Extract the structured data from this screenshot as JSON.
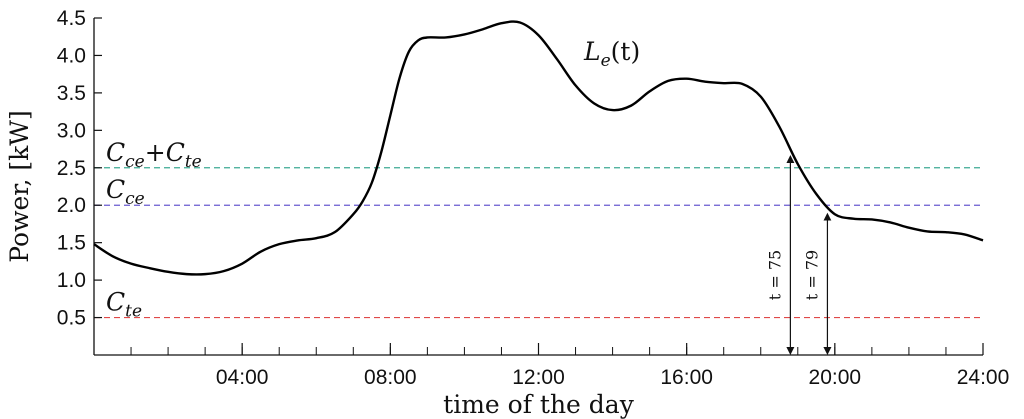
{
  "chart_data": {
    "type": "line",
    "xlabel": "time of the day",
    "ylabel": "Power, [kW]",
    "x_unit": "hour of day",
    "xlim": [
      0,
      24
    ],
    "ylim": [
      0,
      4.5
    ],
    "x_ticks": [
      {
        "value": 4,
        "label": "04:00"
      },
      {
        "value": 8,
        "label": "08:00"
      },
      {
        "value": 12,
        "label": "12:00"
      },
      {
        "value": 16,
        "label": "16:00"
      },
      {
        "value": 20,
        "label": "20:00"
      },
      {
        "value": 24,
        "label": "24:00"
      }
    ],
    "y_ticks": [
      {
        "value": 0.5,
        "label": "0.5"
      },
      {
        "value": 1.0,
        "label": "1.0"
      },
      {
        "value": 1.5,
        "label": "1.5"
      },
      {
        "value": 2.0,
        "label": "2.0"
      },
      {
        "value": 2.5,
        "label": "2.5"
      },
      {
        "value": 3.0,
        "label": "3.0"
      },
      {
        "value": 3.5,
        "label": "3.5"
      },
      {
        "value": 4.0,
        "label": "4.0"
      },
      {
        "value": 4.5,
        "label": "4.5"
      }
    ],
    "minor_x_step": 1,
    "grid": false,
    "series": [
      {
        "label": {
          "base": "L",
          "sub": "e",
          "suffix": "(t)"
        },
        "color": "#000000",
        "x": [
          0,
          0.5,
          1,
          1.5,
          2,
          2.5,
          3,
          3.5,
          4,
          4.5,
          5,
          5.5,
          6,
          6.5,
          7,
          7.25,
          7.5,
          7.75,
          8,
          8.25,
          8.5,
          8.75,
          9,
          9.5,
          10,
          10.5,
          11,
          11.5,
          12,
          12.5,
          13,
          13.5,
          14,
          14.5,
          15,
          15.5,
          16,
          16.5,
          17,
          17.5,
          18,
          18.5,
          19,
          19.5,
          20,
          20.5,
          21,
          21.5,
          22,
          22.5,
          23,
          23.5,
          24
        ],
        "y": [
          1.48,
          1.32,
          1.22,
          1.16,
          1.11,
          1.08,
          1.08,
          1.12,
          1.22,
          1.38,
          1.48,
          1.53,
          1.56,
          1.64,
          1.88,
          2.05,
          2.3,
          2.7,
          3.2,
          3.7,
          4.05,
          4.2,
          4.24,
          4.24,
          4.28,
          4.35,
          4.43,
          4.44,
          4.27,
          3.95,
          3.6,
          3.36,
          3.27,
          3.33,
          3.52,
          3.66,
          3.69,
          3.65,
          3.63,
          3.62,
          3.45,
          3.05,
          2.55,
          2.15,
          1.88,
          1.82,
          1.81,
          1.77,
          1.7,
          1.65,
          1.64,
          1.61,
          1.53
        ]
      }
    ],
    "thresholds": [
      {
        "value": 2.5,
        "color": "#3daa94",
        "label": {
          "parts": [
            {
              "base": "C",
              "sub": "ce"
            },
            {
              "op": "+"
            },
            {
              "base": "C",
              "sub": "te"
            }
          ]
        }
      },
      {
        "value": 2.0,
        "color": "#6a5bd0",
        "label": {
          "parts": [
            {
              "base": "C",
              "sub": "ce"
            }
          ]
        }
      },
      {
        "value": 0.5,
        "color": "#e04848",
        "label": {
          "parts": [
            {
              "base": "C",
              "sub": "te"
            }
          ]
        }
      }
    ],
    "annotations": [
      {
        "x": 18.8,
        "y_top": 2.67,
        "text": "t = 75"
      },
      {
        "x": 19.8,
        "y_top": 1.9,
        "text": "t = 79"
      }
    ]
  }
}
